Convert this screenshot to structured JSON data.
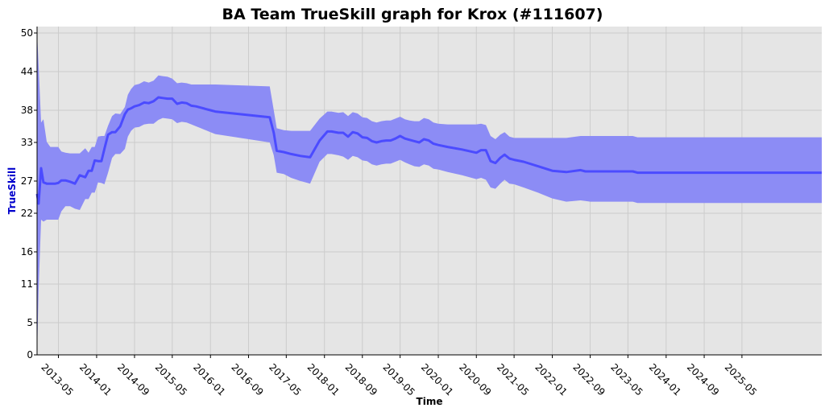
{
  "chart_data": {
    "type": "line",
    "title": "BA Team TrueSkill graph for Krox (#111607)",
    "xlabel": "Time",
    "ylabel": "TrueSkill",
    "grid": true,
    "ylim": [
      0,
      51
    ],
    "xlim": [
      "2012-12-15",
      "2026-09-25"
    ],
    "yticks": [
      0,
      5,
      11,
      16,
      22,
      27,
      33,
      38,
      44,
      50
    ],
    "xticks": [
      "2013-05",
      "2014-01",
      "2014-09",
      "2015-05",
      "2016-01",
      "2016-09",
      "2017-05",
      "2018-01",
      "2018-09",
      "2019-05",
      "2020-01",
      "2020-09",
      "2021-05",
      "2022-01",
      "2022-09",
      "2023-05",
      "2024-01",
      "2024-09",
      "2025-05"
    ],
    "colors": {
      "line": "#4b4bff",
      "band": "#8c8cf5",
      "plot_bg": "#e5e5e5",
      "grid": "#cccccc",
      "ylabel": "#0000cc"
    },
    "series": [
      {
        "x": [
          "2012-12-15",
          "2012-12-25",
          "2013-01-10",
          "2013-01-25",
          "2013-02-15",
          "2013-03-10",
          "2013-04-10",
          "2013-04-30",
          "2013-05-20",
          "2013-06-15",
          "2013-07-15",
          "2013-08-15",
          "2013-09-15",
          "2013-10-20",
          "2013-11-10",
          "2013-12-01",
          "2013-12-20",
          "2014-01-10",
          "2014-02-01",
          "2014-02-20",
          "2014-03-15",
          "2014-04-10",
          "2014-05-01",
          "2014-06-01",
          "2014-07-01",
          "2014-07-20",
          "2014-08-10",
          "2014-09-01",
          "2014-10-01",
          "2014-11-01",
          "2014-12-01",
          "2015-01-01",
          "2015-02-01",
          "2015-03-01",
          "2015-04-01",
          "2015-05-01",
          "2015-06-01",
          "2015-07-01",
          "2015-08-01",
          "2015-09-01",
          "2015-10-01",
          "2015-11-01",
          "2015-12-01",
          "2016-01-01",
          "2016-02-01",
          "2017-01-15",
          "2017-02-10",
          "2017-03-01",
          "2017-04-15",
          "2017-06-01",
          "2017-08-01",
          "2017-10-01",
          "2017-12-01",
          "2018-01-20",
          "2018-02-15",
          "2018-04-01",
          "2018-05-01",
          "2018-06-01",
          "2018-07-01",
          "2018-08-01",
          "2018-09-01",
          "2018-10-01",
          "2018-11-01",
          "2018-12-01",
          "2019-01-01",
          "2019-02-01",
          "2019-03-01",
          "2019-04-01",
          "2019-05-01",
          "2019-06-01",
          "2019-07-01",
          "2019-08-01",
          "2019-09-01",
          "2019-10-01",
          "2019-11-01",
          "2019-12-01",
          "2020-01-01",
          "2020-03-01",
          "2020-06-01",
          "2020-09-01",
          "2020-10-01",
          "2020-11-01",
          "2020-12-01",
          "2021-01-01",
          "2021-02-01",
          "2021-03-01",
          "2021-04-01",
          "2021-05-01",
          "2021-07-01",
          "2021-10-01",
          "2022-01-01",
          "2022-04-01",
          "2022-07-01",
          "2022-08-01",
          "2022-09-01",
          "2023-05-01",
          "2023-06-01",
          "2023-07-01",
          "2023-09-01",
          "2024-01-01",
          "2024-09-01",
          "2025-05-01",
          "2026-01-01",
          "2026-09-25"
        ],
        "mu": [
          25.0,
          23.5,
          29.0,
          26.8,
          26.6,
          26.6,
          26.6,
          26.7,
          27.1,
          27.1,
          26.9,
          26.6,
          27.9,
          27.6,
          28.6,
          28.6,
          30.2,
          30.1,
          30.1,
          32.0,
          34.2,
          34.6,
          34.6,
          35.5,
          37.4,
          38.1,
          38.3,
          38.6,
          38.8,
          39.2,
          39.1,
          39.4,
          40.0,
          39.9,
          39.8,
          39.8,
          39.0,
          39.2,
          39.1,
          38.7,
          38.6,
          38.4,
          38.2,
          38.0,
          37.8,
          36.9,
          34.5,
          31.7,
          31.5,
          31.2,
          30.9,
          30.7,
          33.3,
          34.7,
          34.7,
          34.5,
          34.5,
          33.9,
          34.6,
          34.4,
          33.8,
          33.7,
          33.2,
          33.0,
          33.2,
          33.3,
          33.3,
          33.6,
          34.0,
          33.6,
          33.4,
          33.2,
          33.0,
          33.5,
          33.3,
          32.8,
          32.6,
          32.3,
          31.9,
          31.4,
          31.8,
          31.8,
          30.1,
          29.8,
          30.6,
          31.1,
          30.5,
          30.3,
          30.0,
          29.3,
          28.6,
          28.4,
          28.7,
          28.5,
          28.5,
          28.5,
          28.5,
          28.3,
          28.3,
          28.3,
          28.3,
          28.3,
          28.3,
          28.3
        ],
        "lower": [
          0.0,
          10.0,
          21.0,
          20.7,
          21.0,
          21.0,
          21.0,
          21.0,
          22.3,
          23.1,
          23.1,
          22.7,
          22.5,
          24.2,
          24.2,
          25.2,
          25.2,
          26.8,
          26.7,
          26.5,
          28.3,
          30.6,
          31.2,
          31.2,
          32.0,
          33.9,
          34.8,
          35.3,
          35.4,
          35.8,
          35.9,
          35.9,
          36.5,
          36.8,
          36.7,
          36.6,
          36.0,
          36.2,
          36.1,
          35.8,
          35.5,
          35.2,
          34.9,
          34.6,
          34.3,
          33.0,
          31.0,
          28.3,
          28.1,
          27.5,
          27.0,
          26.6,
          30.0,
          31.2,
          31.2,
          31.0,
          30.8,
          30.3,
          30.9,
          30.7,
          30.2,
          30.1,
          29.6,
          29.4,
          29.6,
          29.7,
          29.7,
          30.0,
          30.3,
          29.9,
          29.6,
          29.3,
          29.2,
          29.6,
          29.4,
          28.9,
          28.8,
          28.4,
          27.9,
          27.3,
          27.5,
          27.2,
          26.0,
          25.8,
          26.6,
          27.2,
          26.6,
          26.5,
          26.0,
          25.2,
          24.3,
          23.8,
          24.0,
          23.9,
          23.8,
          23.8,
          23.8,
          23.6,
          23.6,
          23.6,
          23.6,
          23.6,
          23.6,
          23.6
        ],
        "upper": [
          50.0,
          45.0,
          36.1,
          36.6,
          33.1,
          32.3,
          32.3,
          32.3,
          31.6,
          31.4,
          31.3,
          31.3,
          31.3,
          32.1,
          31.4,
          32.3,
          32.3,
          33.9,
          34.0,
          34.0,
          35.6,
          37.1,
          37.5,
          37.4,
          38.5,
          40.4,
          41.3,
          41.9,
          42.1,
          42.5,
          42.3,
          42.6,
          43.4,
          43.3,
          43.2,
          42.9,
          42.2,
          42.3,
          42.2,
          42.0,
          42.0,
          42.0,
          42.0,
          42.0,
          42.0,
          41.7,
          38.0,
          35.2,
          34.9,
          34.8,
          34.8,
          34.8,
          36.7,
          37.8,
          37.8,
          37.6,
          37.7,
          37.1,
          37.7,
          37.5,
          36.9,
          36.8,
          36.3,
          36.1,
          36.3,
          36.4,
          36.4,
          36.7,
          37.0,
          36.6,
          36.4,
          36.3,
          36.3,
          36.8,
          36.6,
          36.1,
          35.9,
          35.8,
          35.8,
          35.8,
          35.9,
          35.7,
          34.0,
          33.5,
          34.2,
          34.6,
          33.9,
          33.7,
          33.7,
          33.7,
          33.7,
          33.7,
          34.0,
          34.0,
          34.0,
          34.0,
          34.0,
          33.8,
          33.8,
          33.8,
          33.8,
          33.8,
          33.8,
          33.8
        ]
      }
    ]
  }
}
